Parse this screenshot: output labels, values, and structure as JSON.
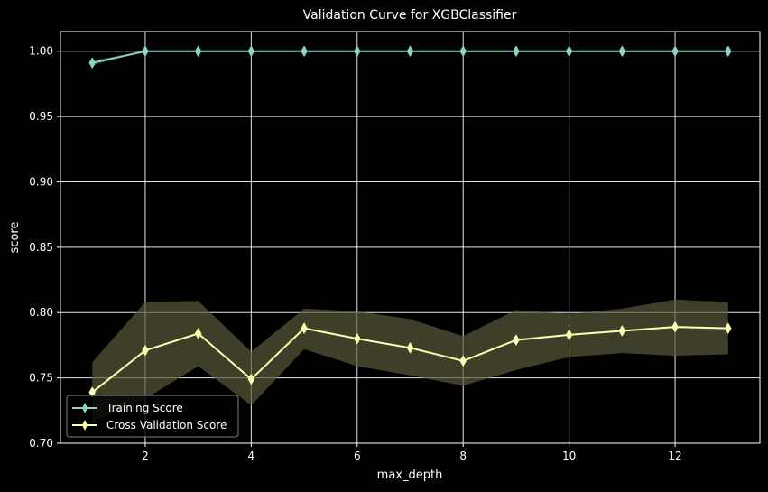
{
  "chart_data": {
    "type": "line",
    "title": "Validation Curve for XGBClassifier",
    "xlabel": "max_depth",
    "ylabel": "score",
    "xlim": [
      0.4,
      13.6
    ],
    "ylim": [
      0.7,
      1.015
    ],
    "xticks": [
      2,
      4,
      6,
      8,
      10,
      12
    ],
    "yticks": [
      0.7,
      0.75,
      0.8,
      0.85,
      0.9,
      0.95,
      1.0
    ],
    "ytick_labels": [
      "0.70",
      "0.75",
      "0.80",
      "0.85",
      "0.90",
      "0.95",
      "1.00"
    ],
    "grid": true,
    "legend_position": "lower-left",
    "x": [
      1,
      2,
      3,
      4,
      5,
      6,
      7,
      8,
      9,
      10,
      11,
      12,
      13
    ],
    "series": [
      {
        "name": "Training Score",
        "color": "#8dd3c7",
        "values": [
          0.991,
          1.0,
          1.0,
          1.0,
          1.0,
          1.0,
          1.0,
          1.0,
          1.0,
          1.0,
          1.0,
          1.0,
          1.0
        ],
        "band_lower": [
          0.989,
          1.0,
          1.0,
          1.0,
          1.0,
          1.0,
          1.0,
          1.0,
          1.0,
          1.0,
          1.0,
          1.0,
          1.0
        ],
        "band_upper": [
          0.993,
          1.0,
          1.0,
          1.0,
          1.0,
          1.0,
          1.0,
          1.0,
          1.0,
          1.0,
          1.0,
          1.0,
          1.0
        ]
      },
      {
        "name": "Cross Validation Score",
        "color": "#ffffb3",
        "band_color": "#5a5a3a",
        "values": [
          0.739,
          0.771,
          0.784,
          0.749,
          0.788,
          0.78,
          0.773,
          0.763,
          0.779,
          0.783,
          0.786,
          0.789,
          0.788
        ],
        "band_lower": [
          0.716,
          0.734,
          0.759,
          0.729,
          0.772,
          0.759,
          0.752,
          0.744,
          0.756,
          0.766,
          0.769,
          0.767,
          0.768
        ],
        "band_upper": [
          0.762,
          0.808,
          0.809,
          0.77,
          0.803,
          0.801,
          0.795,
          0.782,
          0.802,
          0.799,
          0.803,
          0.81,
          0.808
        ]
      }
    ]
  }
}
